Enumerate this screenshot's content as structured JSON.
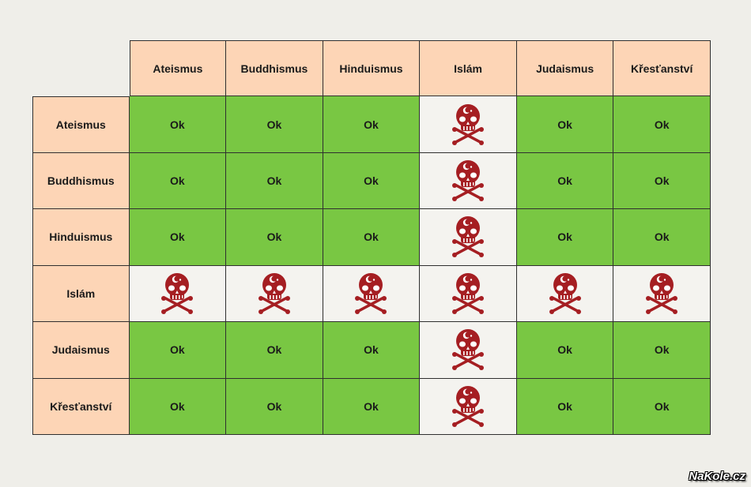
{
  "table": {
    "column_headers": [
      "Ateismus",
      "Buddhismus",
      "Hinduismus",
      "Islám",
      "Judaismus",
      "Křesťanství"
    ],
    "rows": [
      {
        "label": "Ateismus",
        "cells": [
          "Ok",
          "Ok",
          "Ok",
          "skull",
          "Ok",
          "Ok"
        ]
      },
      {
        "label": "Buddhismus",
        "cells": [
          "Ok",
          "Ok",
          "Ok",
          "skull",
          "Ok",
          "Ok"
        ]
      },
      {
        "label": "Hinduismus",
        "cells": [
          "Ok",
          "Ok",
          "Ok",
          "skull",
          "Ok",
          "Ok"
        ]
      },
      {
        "label": "Islám",
        "cells": [
          "skull",
          "skull",
          "skull",
          "skull",
          "skull",
          "skull"
        ]
      },
      {
        "label": "Judaismus",
        "cells": [
          "Ok",
          "Ok",
          "Ok",
          "skull",
          "Ok",
          "Ok"
        ]
      },
      {
        "label": "Křesťanství",
        "cells": [
          "Ok",
          "Ok",
          "Ok",
          "skull",
          "Ok",
          "Ok"
        ]
      }
    ]
  },
  "icons": {
    "danger": "skull-crossbones-crescent-icon"
  },
  "colors": {
    "header_bg": "#fdd5b6",
    "ok_bg": "#79c743",
    "danger_bg": "#f4f3ef",
    "skull": "#a51e22",
    "page_bg": "#efeee9"
  },
  "watermark": "NaKole.cz"
}
